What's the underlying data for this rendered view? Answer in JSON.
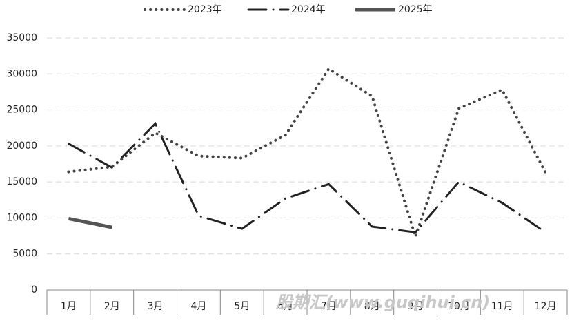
{
  "chart_data": {
    "type": "line",
    "categories": [
      "1月",
      "2月",
      "3月",
      "4月",
      "5月",
      "6月",
      "7月",
      "8月",
      "9月",
      "10月",
      "11月",
      "12月"
    ],
    "series": [
      {
        "name": "2023年",
        "color": "#444444",
        "style": "dotted",
        "values": [
          16400,
          17100,
          21800,
          18600,
          18300,
          21500,
          30700,
          26900,
          7400,
          25200,
          27800,
          16300
        ]
      },
      {
        "name": "2024年",
        "color": "#222222",
        "style": "dashdot",
        "values": [
          20300,
          17000,
          23100,
          10300,
          8500,
          12700,
          14700,
          8800,
          8000,
          15000,
          12100,
          8000
        ]
      },
      {
        "name": "2025年",
        "color": "#555555",
        "style": "solid",
        "values": [
          9900,
          8700,
          null,
          null,
          null,
          null,
          null,
          null,
          null,
          null,
          null,
          null
        ]
      }
    ],
    "ylim": [
      0,
      35000
    ],
    "yticks": [
      0,
      5000,
      10000,
      15000,
      20000,
      25000,
      30000,
      35000
    ],
    "grid": true,
    "watermark": "股期汇(www.guqihui.cn)"
  }
}
